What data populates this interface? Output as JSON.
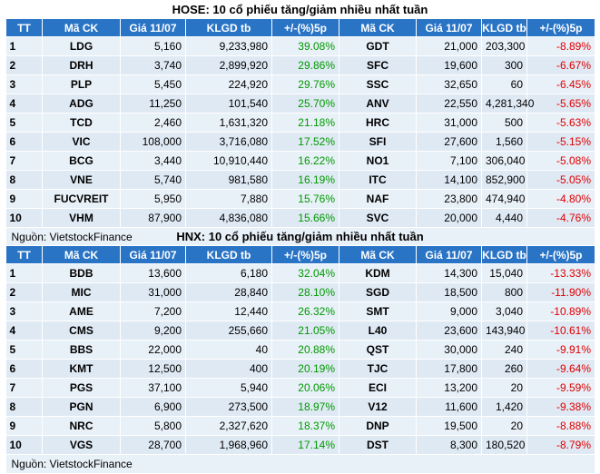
{
  "hose": {
    "title": "HOSE: 10 cổ phiếu tăng/giảm nhiều nhất tuần",
    "headers": [
      "TT",
      "Mã CK",
      "Giá 11/07",
      "KLGD tb",
      "+/-(%)5p",
      "Mã CK",
      "Giá 11/07",
      "KLGD tb",
      "+/-(%)5p"
    ],
    "rows": [
      [
        "1",
        "LDG",
        "5,160",
        "9,233,980",
        "39.08%",
        "GDT",
        "21,000",
        "203,300",
        "-8.89%"
      ],
      [
        "2",
        "DRH",
        "3,740",
        "2,899,920",
        "29.86%",
        "SFC",
        "19,600",
        "300",
        "-6.67%"
      ],
      [
        "3",
        "PLP",
        "5,450",
        "224,920",
        "29.76%",
        "SSC",
        "32,650",
        "60",
        "-6.45%"
      ],
      [
        "4",
        "ADG",
        "11,250",
        "101,540",
        "25.70%",
        "ANV",
        "22,550",
        "4,281,340",
        "-5.65%"
      ],
      [
        "5",
        "TCD",
        "2,460",
        "1,631,320",
        "21.18%",
        "HRC",
        "31,000",
        "500",
        "-5.63%"
      ],
      [
        "6",
        "VIC",
        "108,000",
        "3,716,080",
        "17.52%",
        "SFI",
        "27,600",
        "1,560",
        "-5.15%"
      ],
      [
        "7",
        "BCG",
        "3,440",
        "10,910,440",
        "16.22%",
        "NO1",
        "7,100",
        "306,040",
        "-5.08%"
      ],
      [
        "8",
        "VNE",
        "5,740",
        "981,580",
        "16.19%",
        "ITC",
        "14,100",
        "852,900",
        "-5.05%"
      ],
      [
        "9",
        "FUCVREIT",
        "5,950",
        "7,880",
        "15.76%",
        "NAF",
        "23,800",
        "474,940",
        "-4.80%"
      ],
      [
        "10",
        "VHM",
        "87,900",
        "4,836,080",
        "15.66%",
        "SVC",
        "20,000",
        "4,440",
        "-4.76%"
      ]
    ],
    "source": "Nguồn: VietstockFinance"
  },
  "hnx": {
    "title": "HNX: 10 cổ phiếu tăng/giảm nhiều nhất tuần",
    "headers": [
      "TT",
      "Mã CK",
      "Giá 11/07",
      "KLGD tb",
      "+/-(%)5p",
      "Mã CK",
      "Giá 11/07",
      "KLGD tb",
      "+/-(%)5p"
    ],
    "rows": [
      [
        "1",
        "BDB",
        "13,600",
        "6,180",
        "32.04%",
        "KDM",
        "14,300",
        "15,040",
        "-13.33%"
      ],
      [
        "2",
        "MIC",
        "31,000",
        "28,840",
        "28.10%",
        "SGD",
        "18,500",
        "800",
        "-11.90%"
      ],
      [
        "3",
        "AME",
        "7,200",
        "12,440",
        "26.32%",
        "SMT",
        "9,000",
        "3,040",
        "-10.89%"
      ],
      [
        "4",
        "CMS",
        "9,200",
        "255,660",
        "21.05%",
        "L40",
        "23,600",
        "143,940",
        "-10.61%"
      ],
      [
        "5",
        "BBS",
        "22,000",
        "40",
        "20.88%",
        "QST",
        "30,000",
        "240",
        "-9.91%"
      ],
      [
        "6",
        "KMT",
        "12,500",
        "400",
        "20.19%",
        "TJC",
        "17,800",
        "260",
        "-9.64%"
      ],
      [
        "7",
        "PGS",
        "37,100",
        "5,940",
        "20.06%",
        "ECI",
        "13,200",
        "20",
        "-9.59%"
      ],
      [
        "8",
        "PGN",
        "6,900",
        "273,500",
        "18.97%",
        "V12",
        "11,600",
        "1,420",
        "-9.38%"
      ],
      [
        "9",
        "NRC",
        "5,800",
        "2,327,620",
        "18.37%",
        "DNP",
        "19,500",
        "20",
        "-8.88%"
      ],
      [
        "10",
        "VGS",
        "28,700",
        "1,968,960",
        "17.14%",
        "DST",
        "8,300",
        "180,520",
        "-8.79%"
      ]
    ],
    "source": "Nguồn: VietstockFinance"
  },
  "colors": {
    "header_bg": "#2a74c6",
    "up": "#009900",
    "down": "#e00000",
    "row_bg": "#e8f0f8"
  }
}
